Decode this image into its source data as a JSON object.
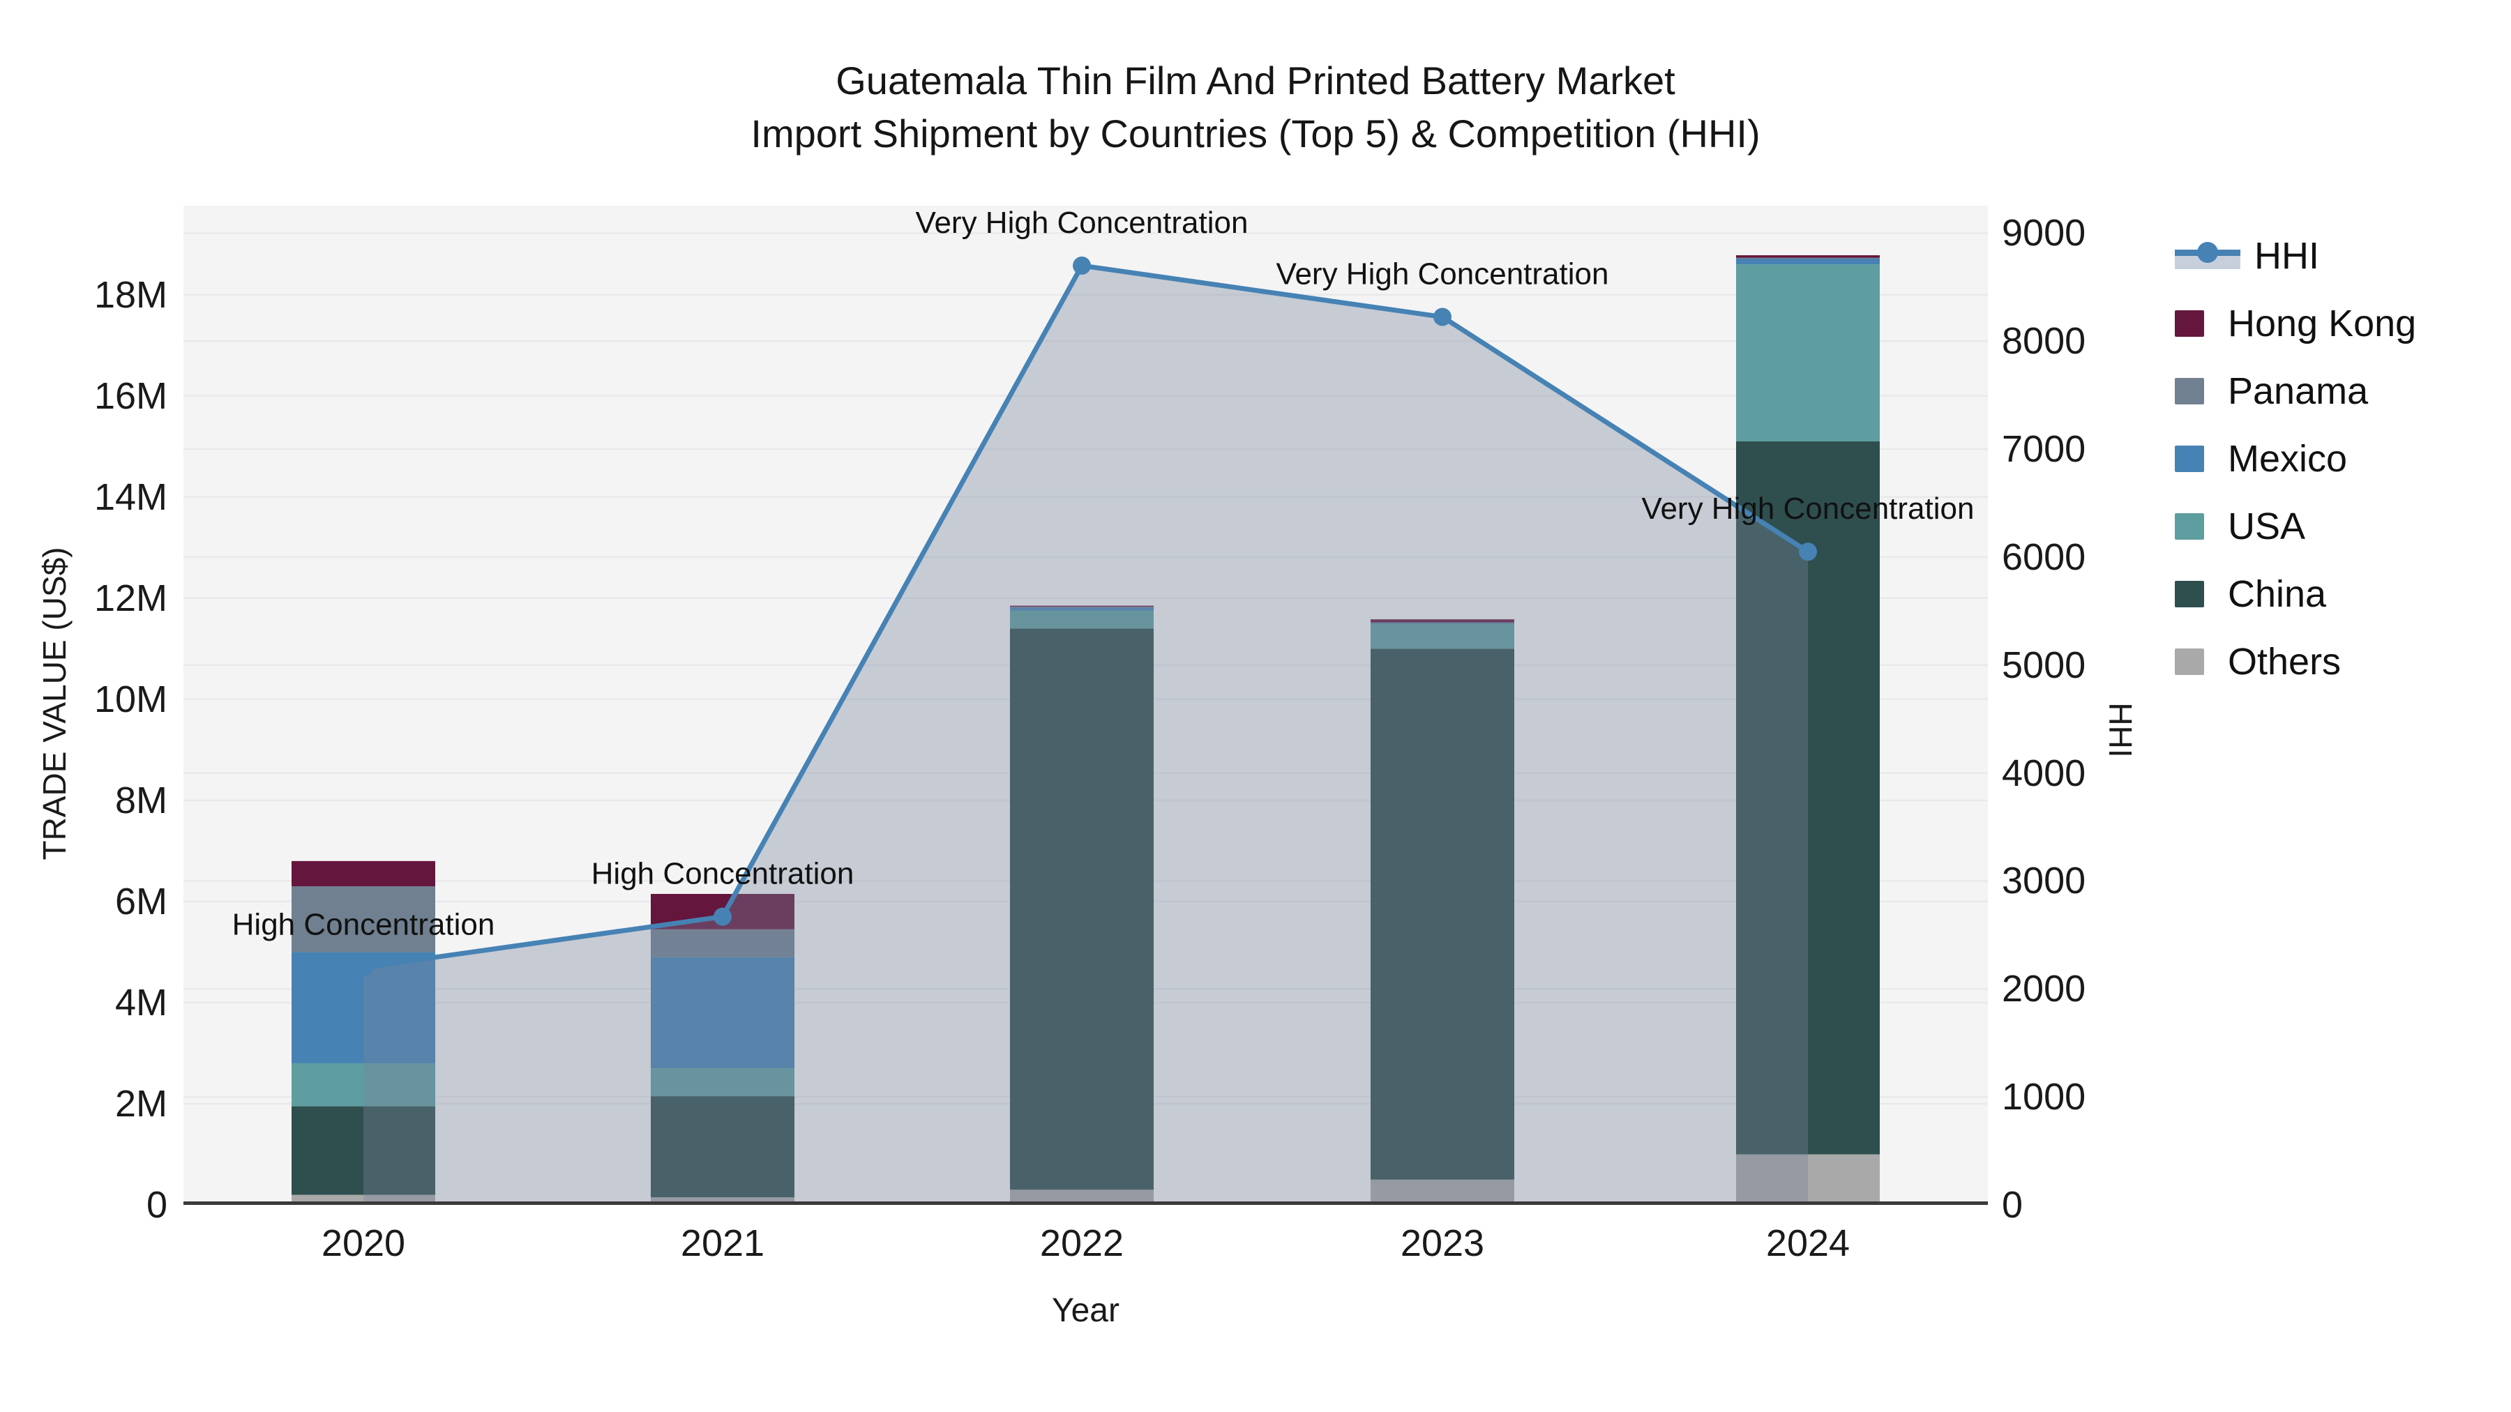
{
  "title_line1": "Guatemala Thin Film And Printed Battery Market",
  "title_line2": "Import Shipment by Countries (Top 5) & Competition (HHI)",
  "chart_data": {
    "type": "bar",
    "subtype": "stacked-bars-with-line-area-dual-axis",
    "categories": [
      "2020",
      "2021",
      "2022",
      "2023",
      "2024"
    ],
    "xlabel": "Year",
    "ylabel_left": "TRADE VALUE (US$)",
    "ylabel_right": "HHI",
    "value_unit": "millions USD",
    "stack_order_bottom_to_top": [
      "Others",
      "China",
      "USA",
      "Mexico",
      "Panama",
      "Hong Kong"
    ],
    "series": [
      {
        "name": "Hong Kong",
        "color": "#65163d",
        "values": [
          0.5,
          0.7,
          0.02,
          0.06,
          0.05
        ]
      },
      {
        "name": "Panama",
        "color": "#708090",
        "values": [
          1.3,
          0.55,
          0.02,
          0.01,
          0.01
        ]
      },
      {
        "name": "Mexico",
        "color": "#4682b4",
        "values": [
          2.2,
          2.2,
          0.06,
          0.01,
          0.12
        ]
      },
      {
        "name": "USA",
        "color": "#5f9ea0",
        "values": [
          0.85,
          0.55,
          0.35,
          0.5,
          3.5
        ]
      },
      {
        "name": "China",
        "color": "#2f4f4f",
        "values": [
          1.75,
          2.0,
          11.1,
          10.5,
          14.1
        ]
      },
      {
        "name": "Others",
        "color": "#a9a9a9",
        "values": [
          0.2,
          0.15,
          0.3,
          0.5,
          1.0
        ]
      }
    ],
    "bar_totals": [
      6.8,
      6.15,
      11.85,
      11.58,
      18.78
    ],
    "hhi": {
      "name": "HHI",
      "values": [
        2200,
        2670,
        8700,
        8225,
        6050
      ],
      "line_color": "#4682b4",
      "area_fill": "rgba(120,134,155,0.37)"
    },
    "annotations": [
      {
        "category": "2020",
        "text": "High Concentration"
      },
      {
        "category": "2021",
        "text": "High Concentration"
      },
      {
        "category": "2022",
        "text": "Very High Concentration"
      },
      {
        "category": "2023",
        "text": "Very High Concentration"
      },
      {
        "category": "2024",
        "text": "Very High Concentration"
      }
    ],
    "left_axis": {
      "ticks": [
        0,
        2,
        4,
        6,
        8,
        10,
        12,
        14,
        16,
        18
      ],
      "tick_labels": [
        "0",
        "2M",
        "4M",
        "6M",
        "8M",
        "10M",
        "12M",
        "14M",
        "16M",
        "18M"
      ],
      "range_max": 19.76,
      "gridlines": true
    },
    "right_axis": {
      "ticks": [
        0,
        1000,
        2000,
        3000,
        4000,
        5000,
        6000,
        7000,
        8000,
        9000
      ],
      "tick_labels": [
        "0",
        "1000",
        "2000",
        "3000",
        "4000",
        "5000",
        "6000",
        "7000",
        "8000",
        "9000"
      ],
      "range_max": 9255,
      "gridlines": true
    },
    "legend_order": [
      "HHI",
      "Hong Kong",
      "Panama",
      "Mexico",
      "USA",
      "China",
      "Others"
    ],
    "legend_position": "right",
    "plot_bg": "#f4f4f5",
    "gridline_color": "#e9e9ec",
    "axisline_color": "#3a3a3a"
  }
}
